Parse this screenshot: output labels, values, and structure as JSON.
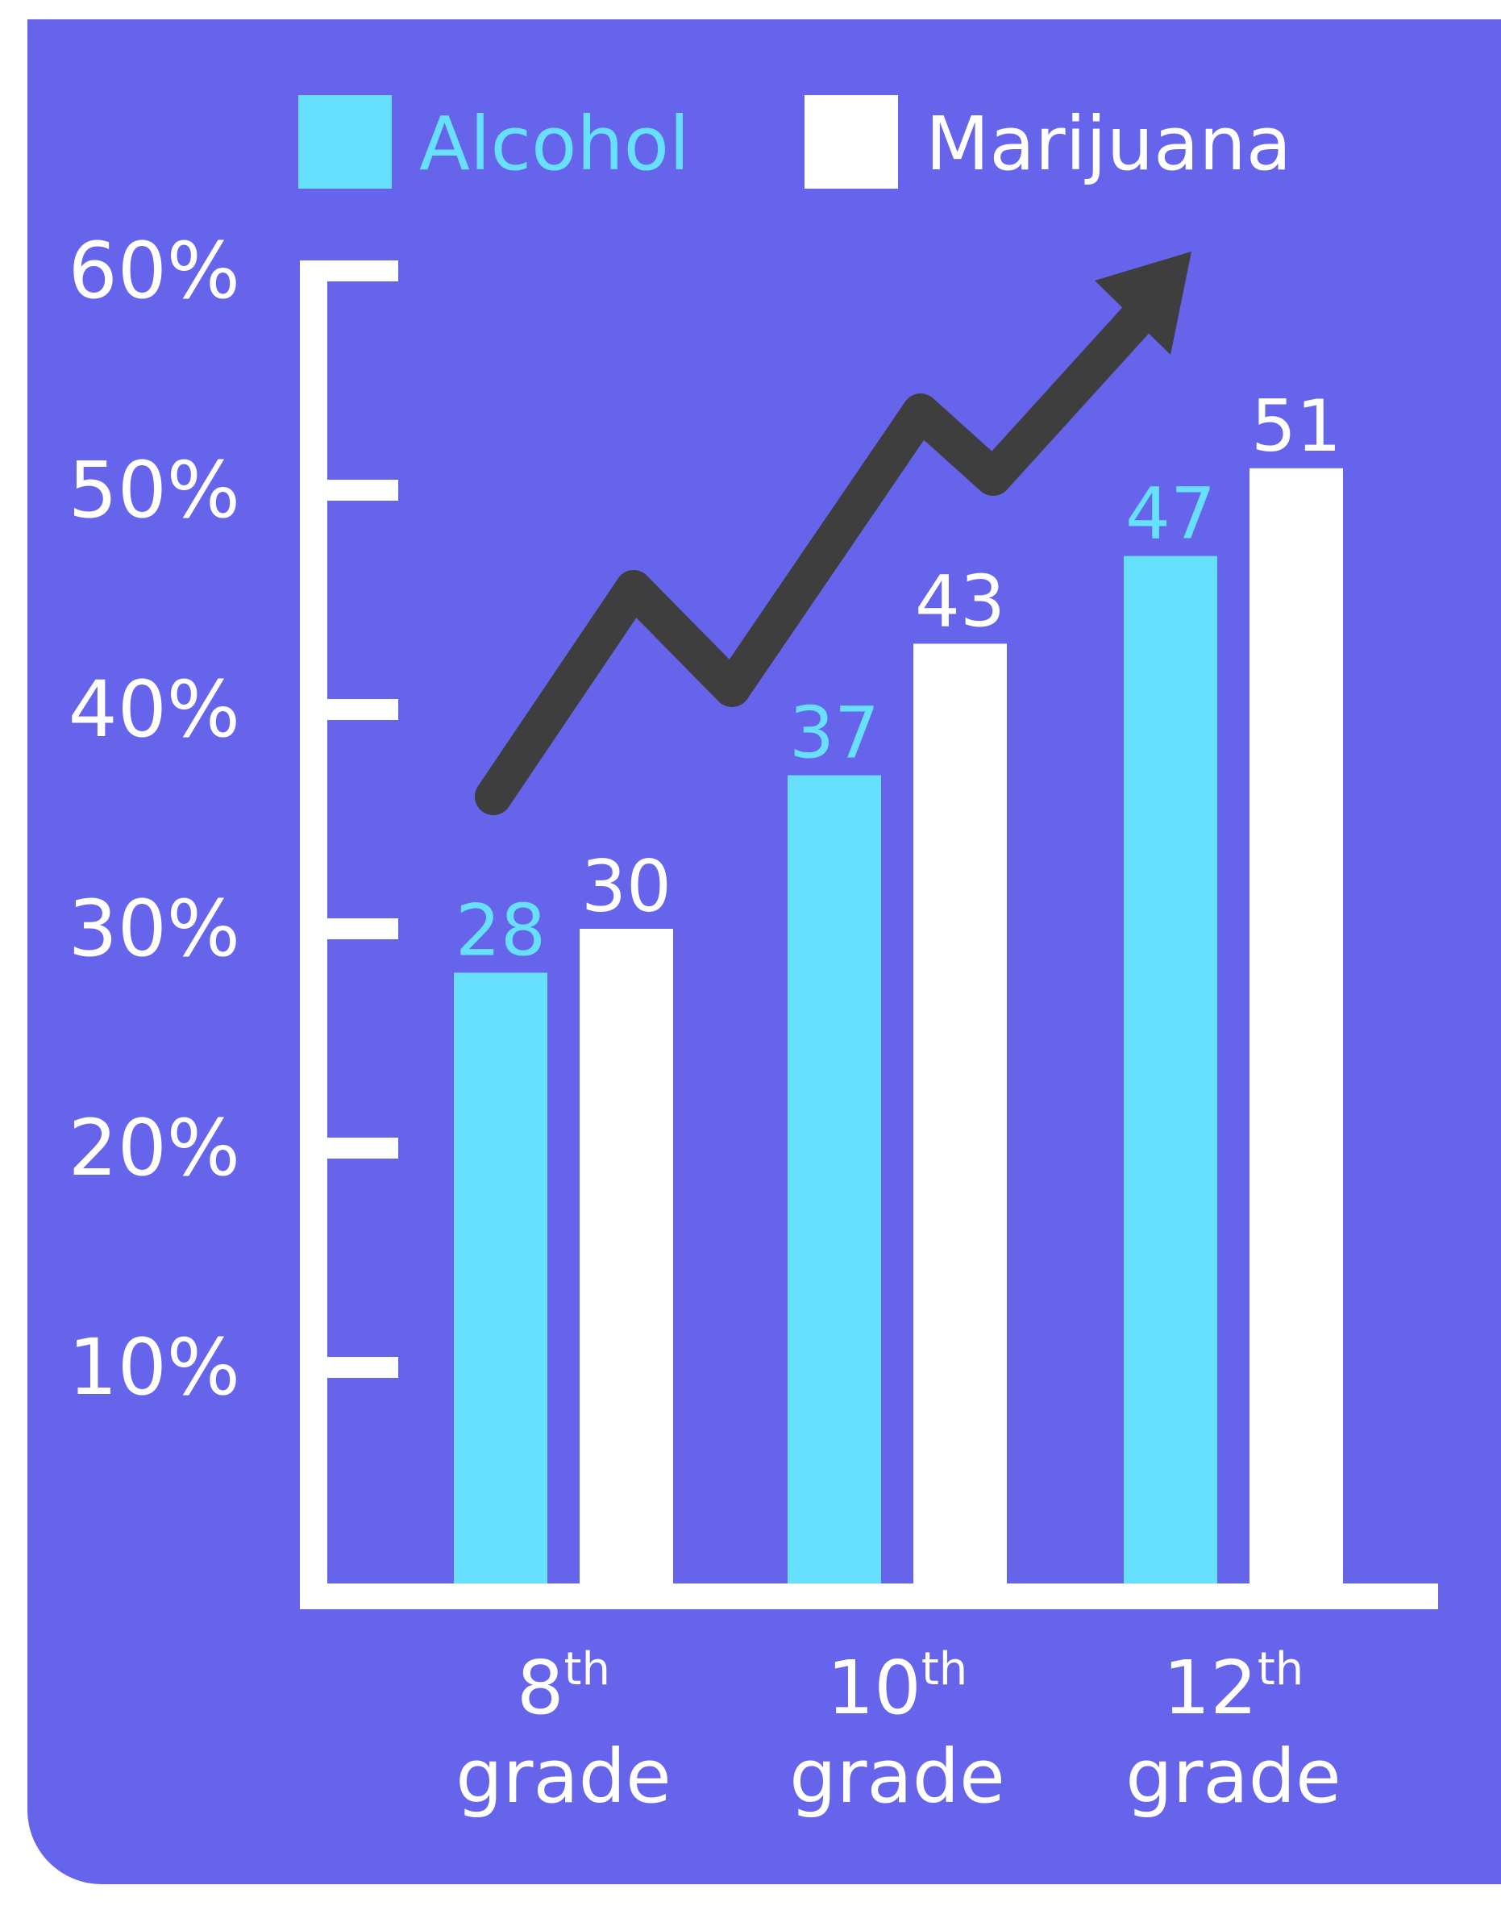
{
  "colors": {
    "background": "#6664ea",
    "alcohol": "#67e0fe",
    "marijuana": "#ffffff",
    "axis": "#ffffff",
    "trend_arrow": "#3e3e3e"
  },
  "chart_data": {
    "type": "bar",
    "legend": {
      "placement": "top",
      "items": [
        {
          "label": "Alcohol",
          "color": "#67e0fe"
        },
        {
          "label": "Marijuana",
          "color": "#ffffff"
        }
      ]
    },
    "categories": [
      {
        "ordinal": "8",
        "suffix": "th",
        "word": "grade"
      },
      {
        "ordinal": "10",
        "suffix": "th",
        "word": "grade"
      },
      {
        "ordinal": "12",
        "suffix": "th",
        "word": "grade"
      }
    ],
    "series": [
      {
        "name": "Alcohol",
        "color": "#67e0fe",
        "values": [
          28,
          37,
          47
        ],
        "labels": [
          "28",
          "37",
          "47"
        ]
      },
      {
        "name": "Marijuana",
        "color": "#ffffff",
        "values": [
          30,
          43,
          51
        ],
        "labels": [
          "30",
          "43",
          "51"
        ]
      }
    ],
    "y_ticks": [
      {
        "value": 10,
        "label": "10%"
      },
      {
        "value": 20,
        "label": "20%"
      },
      {
        "value": 30,
        "label": "30%"
      },
      {
        "value": 40,
        "label": "40%"
      },
      {
        "value": 50,
        "label": "50%"
      },
      {
        "value": 60,
        "label": "60%"
      }
    ],
    "ylim": [
      0,
      60
    ],
    "grid": false,
    "decoration": {
      "type": "trend-arrow",
      "direction": "up"
    }
  }
}
